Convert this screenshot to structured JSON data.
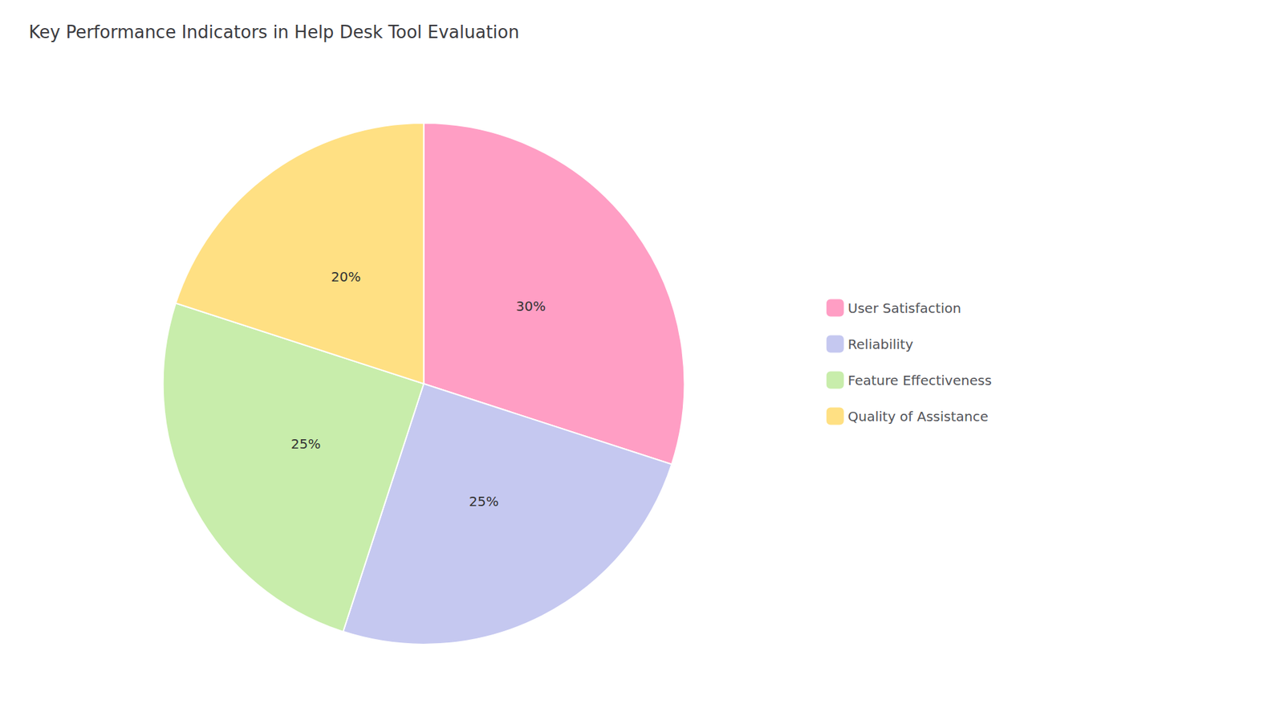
{
  "chart_data": {
    "type": "pie",
    "title": "Key Performance Indicators in Help Desk Tool Evaluation",
    "categories": [
      "User Satisfaction",
      "Reliability",
      "Feature Effectiveness",
      "Quality of Assistance"
    ],
    "values": [
      30,
      25,
      25,
      20
    ],
    "value_labels": [
      "30%",
      "25%",
      "25%",
      "20%"
    ],
    "colors": [
      "#FF9EC4",
      "#C5C8F0",
      "#C8EDAB",
      "#FFE083"
    ],
    "data_labels": true,
    "legend": "right"
  }
}
